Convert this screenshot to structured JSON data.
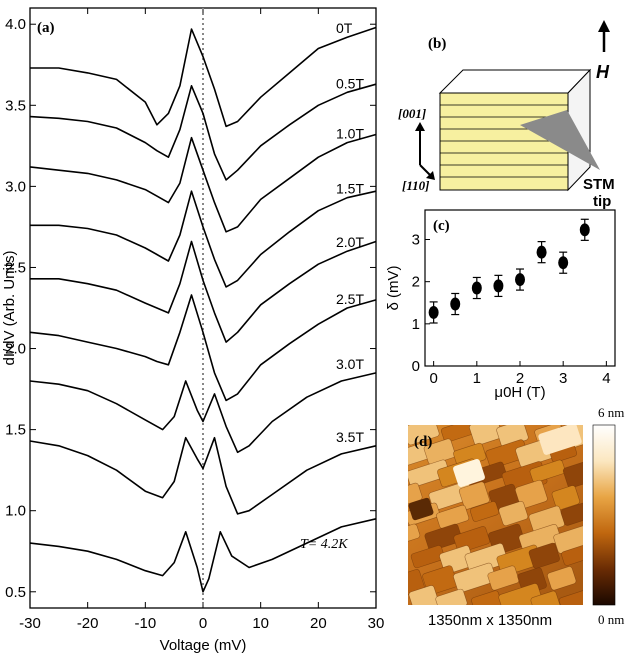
{
  "chart_data": [
    {
      "panel": "(a)",
      "type": "line",
      "xlabel": "Voltage (mV)",
      "ylabel": "dI/dV (Arb. Units)",
      "xlim": [
        -30,
        30
      ],
      "ylim": [
        0.4,
        4.1
      ],
      "xticks": [
        "-30",
        "-20",
        "-10",
        "0",
        "10",
        "20",
        "30"
      ],
      "yticks": [
        "0.5",
        "1.0",
        "1.5",
        "2.0",
        "2.5",
        "3.0",
        "3.5",
        "4.0"
      ],
      "annotation": "T= 4.2K",
      "zero_line": true,
      "series": [
        {
          "name": "0T",
          "points": [
            [
              -30,
              3.73
            ],
            [
              -25,
              3.73
            ],
            [
              -20,
              3.7
            ],
            [
              -15,
              3.66
            ],
            [
              -10,
              3.52
            ],
            [
              -8,
              3.38
            ],
            [
              -6,
              3.45
            ],
            [
              -4,
              3.62
            ],
            [
              -2,
              3.97
            ],
            [
              0,
              3.8
            ],
            [
              2,
              3.6
            ],
            [
              4,
              3.37
            ],
            [
              6,
              3.4
            ],
            [
              10,
              3.55
            ],
            [
              15,
              3.7
            ],
            [
              20,
              3.85
            ],
            [
              25,
              3.92
            ],
            [
              30,
              3.98
            ]
          ]
        },
        {
          "name": "0.5T",
          "points": [
            [
              -30,
              3.43
            ],
            [
              -25,
              3.42
            ],
            [
              -20,
              3.4
            ],
            [
              -15,
              3.36
            ],
            [
              -10,
              3.27
            ],
            [
              -8,
              3.22
            ],
            [
              -6,
              3.18
            ],
            [
              -4,
              3.35
            ],
            [
              -2,
              3.62
            ],
            [
              0,
              3.45
            ],
            [
              2,
              3.2
            ],
            [
              4,
              3.04
            ],
            [
              6,
              3.1
            ],
            [
              10,
              3.25
            ],
            [
              15,
              3.38
            ],
            [
              20,
              3.5
            ],
            [
              25,
              3.58
            ],
            [
              30,
              3.63
            ]
          ]
        },
        {
          "name": "1.0T",
          "points": [
            [
              -30,
              3.12
            ],
            [
              -25,
              3.1
            ],
            [
              -20,
              3.08
            ],
            [
              -15,
              3.04
            ],
            [
              -10,
              2.98
            ],
            [
              -8,
              2.94
            ],
            [
              -6,
              2.9
            ],
            [
              -4,
              3.02
            ],
            [
              -2,
              3.3
            ],
            [
              0,
              3.1
            ],
            [
              2,
              2.9
            ],
            [
              4,
              2.72
            ],
            [
              6,
              2.75
            ],
            [
              10,
              2.92
            ],
            [
              15,
              3.05
            ],
            [
              20,
              3.18
            ],
            [
              25,
              3.27
            ],
            [
              30,
              3.32
            ]
          ]
        },
        {
          "name": "1.5T",
          "points": [
            [
              -30,
              2.76
            ],
            [
              -25,
              2.76
            ],
            [
              -20,
              2.74
            ],
            [
              -15,
              2.7
            ],
            [
              -10,
              2.62
            ],
            [
              -8,
              2.58
            ],
            [
              -6,
              2.54
            ],
            [
              -4,
              2.7
            ],
            [
              -2,
              2.97
            ],
            [
              0,
              2.75
            ],
            [
              2,
              2.55
            ],
            [
              4,
              2.38
            ],
            [
              6,
              2.42
            ],
            [
              10,
              2.58
            ],
            [
              15,
              2.72
            ],
            [
              20,
              2.85
            ],
            [
              25,
              2.93
            ],
            [
              30,
              2.97
            ]
          ]
        },
        {
          "name": "2.0T",
          "points": [
            [
              -30,
              2.43
            ],
            [
              -25,
              2.43
            ],
            [
              -20,
              2.4
            ],
            [
              -15,
              2.36
            ],
            [
              -10,
              2.28
            ],
            [
              -8,
              2.25
            ],
            [
              -6,
              2.22
            ],
            [
              -4,
              2.4
            ],
            [
              -2,
              2.66
            ],
            [
              0,
              2.42
            ],
            [
              2,
              2.22
            ],
            [
              4,
              2.04
            ],
            [
              6,
              2.1
            ],
            [
              10,
              2.27
            ],
            [
              15,
              2.4
            ],
            [
              20,
              2.52
            ],
            [
              25,
              2.6
            ],
            [
              30,
              2.66
            ]
          ]
        },
        {
          "name": "2.5T",
          "points": [
            [
              -30,
              2.1
            ],
            [
              -25,
              2.08
            ],
            [
              -20,
              2.04
            ],
            [
              -15,
              2.0
            ],
            [
              -10,
              1.95
            ],
            [
              -8,
              1.92
            ],
            [
              -6,
              1.9
            ],
            [
              -4,
              2.1
            ],
            [
              -2,
              2.33
            ],
            [
              0,
              2.1
            ],
            [
              2,
              1.85
            ],
            [
              4,
              1.68
            ],
            [
              6,
              1.72
            ],
            [
              10,
              1.9
            ],
            [
              15,
              2.03
            ],
            [
              20,
              2.15
            ],
            [
              25,
              2.25
            ],
            [
              30,
              2.3
            ]
          ]
        },
        {
          "name": "3.0T",
          "points": [
            [
              -30,
              1.8
            ],
            [
              -25,
              1.78
            ],
            [
              -20,
              1.74
            ],
            [
              -15,
              1.66
            ],
            [
              -10,
              1.56
            ],
            [
              -7,
              1.5
            ],
            [
              -5,
              1.58
            ],
            [
              -3,
              1.8
            ],
            [
              -1,
              1.62
            ],
            [
              0,
              1.55
            ],
            [
              2,
              1.72
            ],
            [
              4,
              1.52
            ],
            [
              6,
              1.36
            ],
            [
              8,
              1.4
            ],
            [
              12,
              1.55
            ],
            [
              18,
              1.7
            ],
            [
              24,
              1.8
            ],
            [
              30,
              1.85
            ]
          ]
        },
        {
          "name": "3.5T",
          "points": [
            [
              -30,
              1.43
            ],
            [
              -25,
              1.4
            ],
            [
              -20,
              1.34
            ],
            [
              -15,
              1.25
            ],
            [
              -10,
              1.12
            ],
            [
              -7,
              1.08
            ],
            [
              -5,
              1.18
            ],
            [
              -3,
              1.45
            ],
            [
              -1,
              1.32
            ],
            [
              0,
              1.26
            ],
            [
              2,
              1.45
            ],
            [
              4,
              1.15
            ],
            [
              6,
              0.98
            ],
            [
              8,
              1.0
            ],
            [
              12,
              1.1
            ],
            [
              18,
              1.25
            ],
            [
              24,
              1.35
            ],
            [
              30,
              1.4
            ]
          ]
        },
        {
          "name": "",
          "points": [
            [
              -30,
              0.8
            ],
            [
              -25,
              0.78
            ],
            [
              -20,
              0.75
            ],
            [
              -15,
              0.7
            ],
            [
              -10,
              0.63
            ],
            [
              -7,
              0.6
            ],
            [
              -5,
              0.68
            ],
            [
              -3,
              0.87
            ],
            [
              -1,
              0.65
            ],
            [
              0,
              0.5
            ],
            [
              1,
              0.58
            ],
            [
              3,
              0.87
            ],
            [
              5,
              0.72
            ],
            [
              8,
              0.65
            ],
            [
              12,
              0.7
            ],
            [
              18,
              0.8
            ],
            [
              24,
              0.9
            ],
            [
              30,
              0.95
            ]
          ]
        }
      ]
    },
    {
      "panel": "(c)",
      "type": "scatter",
      "xlabel": "μ0H (T)",
      "ylabel": "δ (mV)",
      "xlim": [
        -0.2,
        4.2
      ],
      "ylim": [
        0,
        3.7
      ],
      "xticks": [
        "0",
        "1",
        "2",
        "3",
        "4"
      ],
      "yticks": [
        "0",
        "1",
        "2",
        "3"
      ],
      "points": [
        {
          "x": 0.0,
          "y": 1.27,
          "err": 0.25
        },
        {
          "x": 0.5,
          "y": 1.47,
          "err": 0.25
        },
        {
          "x": 1.0,
          "y": 1.85,
          "err": 0.25
        },
        {
          "x": 1.5,
          "y": 1.9,
          "err": 0.25
        },
        {
          "x": 2.0,
          "y": 2.05,
          "err": 0.25
        },
        {
          "x": 2.5,
          "y": 2.7,
          "err": 0.25
        },
        {
          "x": 3.0,
          "y": 2.45,
          "err": 0.25
        },
        {
          "x": 3.5,
          "y": 3.23,
          "err": 0.25
        }
      ]
    }
  ],
  "panel_b": {
    "label": "(b)",
    "field_label": "H",
    "dir_vertical": "[001]",
    "dir_horizontal": "[110]",
    "tip_label_line1": "STM",
    "tip_label_line2": "tip",
    "film_color": "#f7f0a0"
  },
  "panel_d": {
    "label": "(d)",
    "caption": "1350nm x 1350nm",
    "colorbar_max": "6 nm",
    "colorbar_min": "0 nm",
    "colors": [
      "#1a0800",
      "#6a2c04",
      "#c0670f",
      "#e8a545",
      "#fbe7c0",
      "#ffffff"
    ]
  }
}
